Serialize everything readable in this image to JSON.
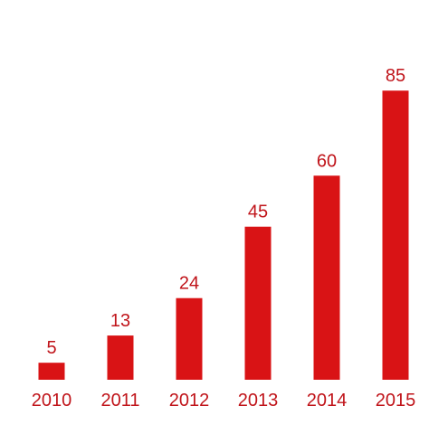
{
  "chart_data": {
    "type": "bar",
    "categories": [
      "2010",
      "2011",
      "2012",
      "2013",
      "2014",
      "2015"
    ],
    "values": [
      5,
      13,
      24,
      45,
      60,
      85
    ],
    "title": "",
    "xlabel": "",
    "ylabel": "",
    "ylim": [
      0,
      105
    ],
    "grid": false,
    "data_labels": true,
    "bar_color": "#d91315",
    "label_color": "#c0141a"
  }
}
